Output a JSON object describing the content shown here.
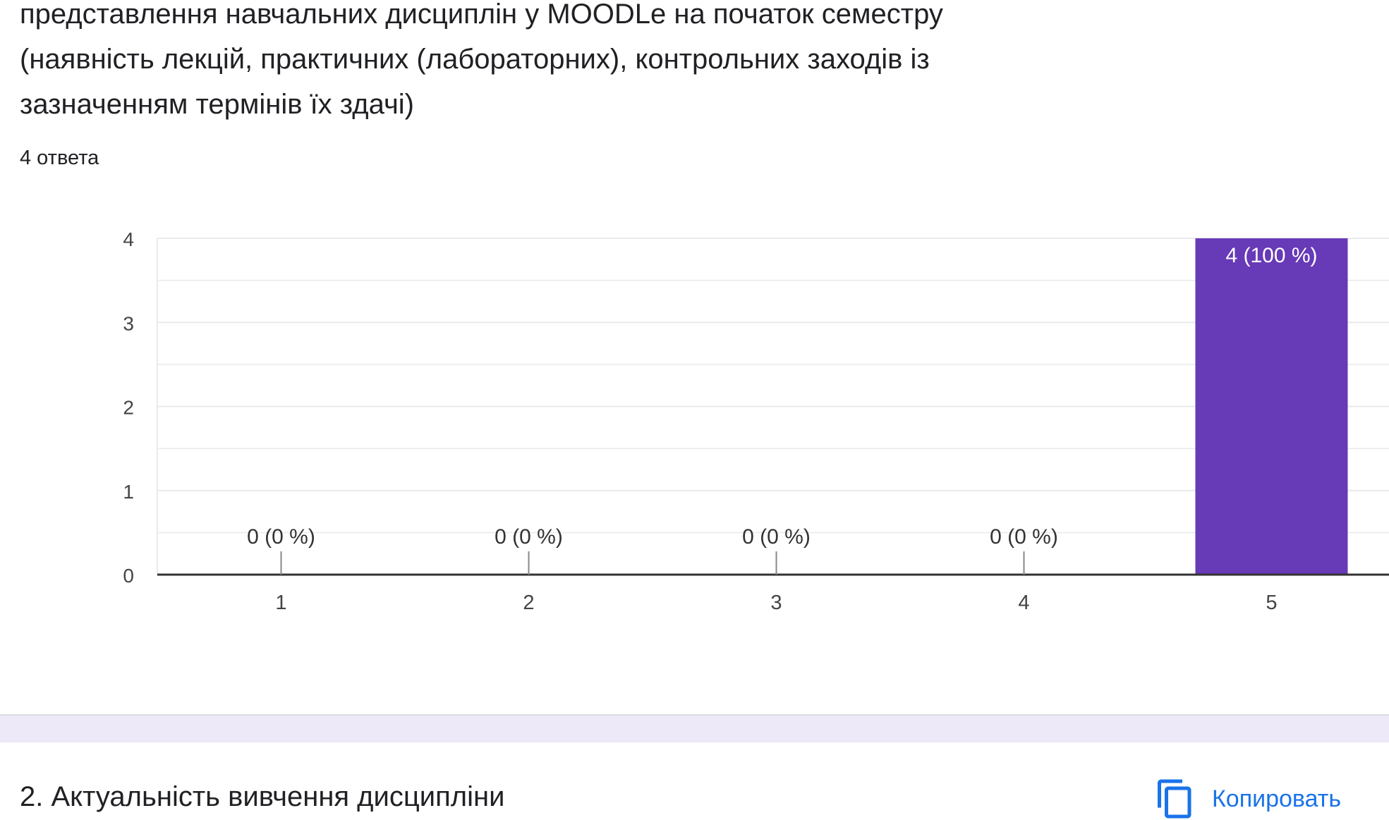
{
  "question": {
    "title_lines": [
      "представлення навчальних дисциплін у MOODLe на початок семестру",
      "(наявність лекцій, практичних (лабораторних), контрольних заходів із",
      "зазначенням термінів їх здачі)"
    ],
    "response_count": "4 ответа"
  },
  "colors": {
    "bar": "#673ab7",
    "bar_label": "#ffffff",
    "grid": "#e8eaed",
    "axis": "#333333",
    "text": "#444444",
    "divider_band": "#ede9f8",
    "link": "#1a73e8"
  },
  "chart_data": {
    "type": "bar",
    "categories": [
      "1",
      "2",
      "3",
      "4",
      "5"
    ],
    "values": [
      0,
      0,
      0,
      0,
      4
    ],
    "data_labels": [
      "0 (0 %)",
      "0 (0 %)",
      "0 (0 %)",
      "0 (0 %)",
      "4 (100 %)"
    ],
    "y_ticks": [
      "0",
      "1",
      "2",
      "3",
      "4"
    ],
    "ylim": [
      0,
      4
    ],
    "title": "",
    "xlabel": "",
    "ylabel": "",
    "grid": true,
    "legend": "none"
  },
  "next_question": {
    "title": "2. Актуальність вивчення дисципліни",
    "copy_label": "Копировать",
    "copy_icon": "copy-icon"
  }
}
